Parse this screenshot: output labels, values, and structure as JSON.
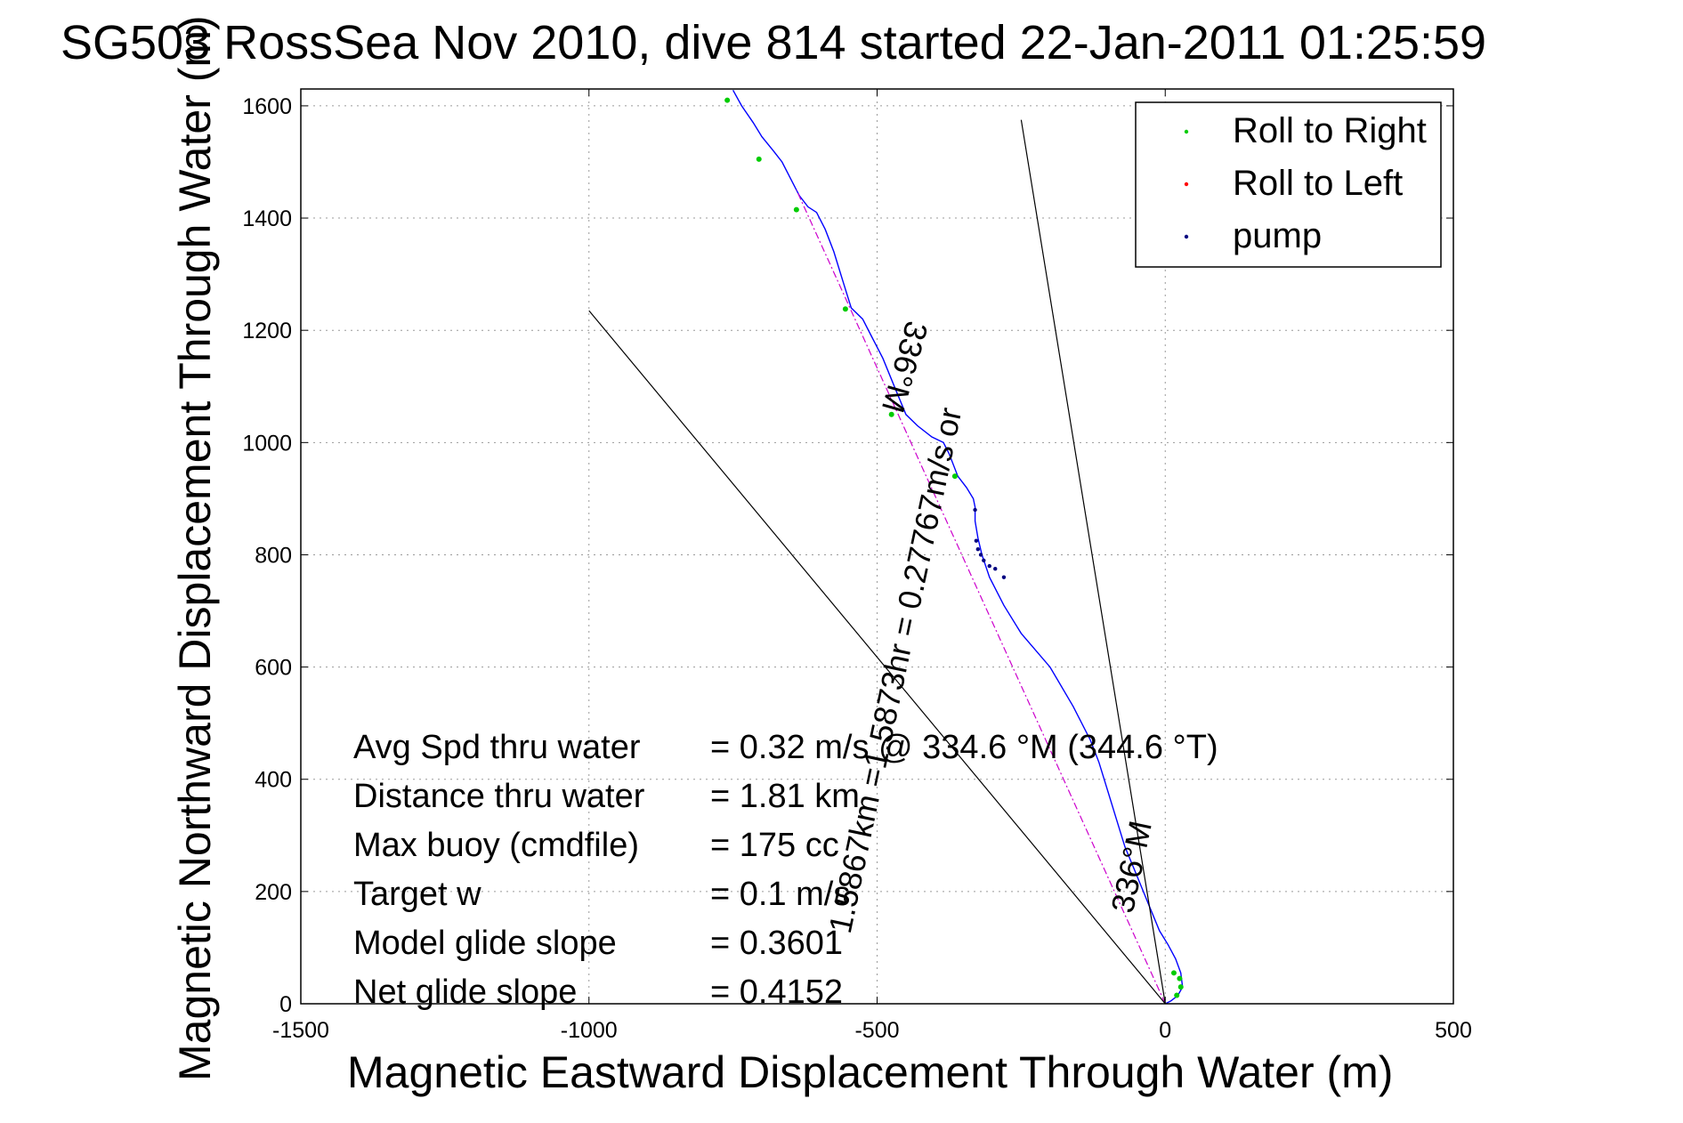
{
  "chart_data": {
    "type": "line",
    "title": "SG503 RossSea Nov 2010, dive 814 started 22-Jan-2011 01:25:59",
    "xlabel": "Magnetic Eastward Displacement Through Water (m)",
    "ylabel": "Magnetic Northward Displacement Through Water (m)",
    "xlim": [
      -1500,
      500
    ],
    "ylim": [
      0,
      1630
    ],
    "xticks": [
      -1500,
      -1000,
      -500,
      0,
      500
    ],
    "xtick_labels": [
      "-1500",
      "-1000",
      "-500",
      "0",
      "500"
    ],
    "yticks": [
      0,
      200,
      400,
      600,
      800,
      1000,
      1200,
      1400,
      1600
    ],
    "ytick_labels": [
      "0",
      "200",
      "400",
      "600",
      "800",
      "1000",
      "1200",
      "1400",
      "1600"
    ],
    "grid": true,
    "legend_position": "top-right",
    "legend": [
      {
        "label": "Roll to Right",
        "color": "#00cc00"
      },
      {
        "label": "Roll to Left",
        "color": "#ff0000"
      },
      {
        "label": "pump",
        "color": "#000080"
      }
    ],
    "series": [
      {
        "role": "track",
        "color": "#0000ff",
        "x": [
          0,
          10,
          22,
          30,
          27,
          18,
          5,
          -10,
          -30,
          -50,
          -70,
          -85,
          -100,
          -115,
          -130,
          -160,
          -200,
          -250,
          -280,
          -305,
          -318,
          -325,
          -330,
          -330,
          -333,
          -345,
          -360,
          -375,
          -385,
          -405,
          -430,
          -450,
          -470,
          -490,
          -510,
          -525,
          -545,
          -560,
          -575,
          -590,
          -605,
          -620,
          -635,
          -650,
          -665,
          -680,
          -700,
          -715,
          -735,
          -750
        ],
        "y": [
          0,
          5,
          15,
          30,
          55,
          80,
          105,
          130,
          180,
          230,
          280,
          330,
          380,
          430,
          470,
          530,
          600,
          660,
          710,
          760,
          800,
          830,
          860,
          885,
          900,
          920,
          940,
          980,
          1000,
          1010,
          1030,
          1050,
          1100,
          1150,
          1190,
          1220,
          1240,
          1290,
          1340,
          1380,
          1410,
          1420,
          1440,
          1470,
          1500,
          1520,
          1545,
          1570,
          1600,
          1628
        ]
      },
      {
        "role": "direct-course",
        "color": "#cc00cc",
        "x": [
          0,
          -640
        ],
        "y": [
          0,
          1450
        ]
      },
      {
        "role": "reference-line",
        "color": "#000000",
        "x": [
          0,
          -1000
        ],
        "y": [
          0,
          1235
        ]
      },
      {
        "role": "reference-line",
        "color": "#000000",
        "x": [
          0,
          -250
        ],
        "y": [
          0,
          1575
        ]
      }
    ],
    "marker_groups": [
      {
        "series": "Roll to Right",
        "color": "#00cc00",
        "x": [
          -760,
          -705,
          -640,
          -555,
          -475,
          -365,
          20,
          27,
          25,
          15
        ],
        "y": [
          1610,
          1505,
          1415,
          1238,
          1050,
          940,
          15,
          30,
          45,
          55
        ]
      },
      {
        "series": "pump",
        "color": "#000080",
        "x": [
          -330,
          -328,
          -325,
          -320,
          -315,
          -305,
          -295,
          -280
        ],
        "y": [
          880,
          825,
          810,
          800,
          790,
          780,
          775,
          760
        ]
      }
    ],
    "annotations": [
      {
        "text": "1.5867km =1.5873hr = 0.27767m/s or",
        "x": -450,
        "y": 590,
        "angle": -78
      },
      {
        "text": "336°M",
        "x": -470,
        "y": 1140,
        "angle": 106
      },
      {
        "text": "336°M",
        "x": -40,
        "y": 240,
        "angle": -78
      }
    ],
    "stats": [
      {
        "label": "Avg Spd thru water",
        "value": "=  0.32 m/s @ 334.6 °M (344.6 °T)"
      },
      {
        "label": "Distance thru water",
        "value": "=  1.81 km"
      },
      {
        "label": "Max buoy (cmdfile)",
        "value": "= 175 cc"
      },
      {
        "label": "Target w",
        "value": "= 0.1 m/s"
      },
      {
        "label": "Model glide slope",
        "value": "= 0.3601"
      },
      {
        "label": "Net glide slope",
        "value": "= 0.4152"
      }
    ]
  }
}
